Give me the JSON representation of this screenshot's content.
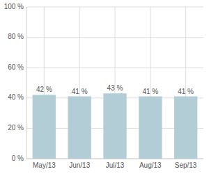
{
  "chart_data": {
    "type": "bar",
    "categories": [
      "May/13",
      "Jun/13",
      "Jul/13",
      "Aug/13",
      "Sep/13"
    ],
    "values": [
      42,
      41,
      43,
      41,
      41
    ],
    "value_labels": [
      "42 %",
      "41 %",
      "43 %",
      "41 %",
      "41 %"
    ],
    "data_labels": true,
    "color": "#b2cdd5",
    "ylim": [
      0,
      100
    ],
    "yticks": [
      {
        "value": 0,
        "label": "0 %"
      },
      {
        "value": 20,
        "label": "20 %"
      },
      {
        "value": 40,
        "label": "40 %"
      },
      {
        "value": 60,
        "label": "60 %"
      },
      {
        "value": 80,
        "label": "80 %"
      },
      {
        "value": 100,
        "label": "100 %"
      }
    ],
    "grid": true
  }
}
